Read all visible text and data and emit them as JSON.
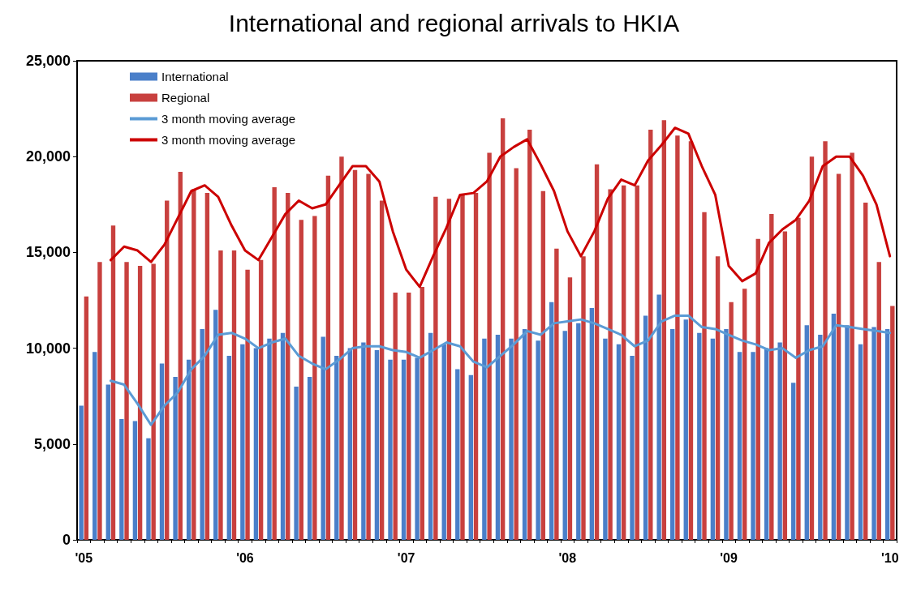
{
  "chart_data": {
    "type": "bar",
    "title": "International and regional arrivals to HKIA",
    "categories": [
      "'05",
      null,
      null,
      null,
      null,
      null,
      null,
      null,
      null,
      null,
      null,
      null,
      "'06",
      null,
      null,
      null,
      null,
      null,
      null,
      null,
      null,
      null,
      null,
      null,
      "'07",
      null,
      null,
      null,
      null,
      null,
      null,
      null,
      null,
      null,
      null,
      null,
      "'08",
      null,
      null,
      null,
      null,
      null,
      null,
      null,
      null,
      null,
      null,
      null,
      "'09",
      null,
      null,
      null,
      null,
      null,
      null,
      null,
      null,
      null,
      null,
      null,
      "'10"
    ],
    "series": [
      {
        "name": "International",
        "color": "#4a7fc9",
        "values": [
          7000,
          9800,
          8100,
          6300,
          6200,
          5300,
          9200,
          8500,
          9400,
          11000,
          12000,
          9600,
          10200,
          10000,
          10500,
          10800,
          8000,
          8500,
          10600,
          9600,
          10000,
          10300,
          9900,
          9400,
          9400,
          9500,
          10800,
          10200,
          8900,
          8600,
          10500,
          10700,
          10500,
          11000,
          10400,
          12400,
          10900,
          11300,
          12100,
          10500,
          10200,
          9600,
          11700,
          12800,
          11000,
          11500,
          10800,
          10500,
          11000,
          9800,
          9800,
          10000,
          10300,
          8200,
          11200,
          10700,
          11800,
          11200,
          10200,
          11100,
          11000
        ]
      },
      {
        "name": "Regional",
        "color": "#c8403e",
        "values": [
          12700,
          14500,
          16400,
          14500,
          14300,
          14400,
          17700,
          19200,
          18300,
          18100,
          15100,
          15100,
          14100,
          14600,
          18400,
          18100,
          16700,
          16900,
          19000,
          20000,
          19300,
          19100,
          17700,
          12900,
          12900,
          13200,
          17900,
          17800,
          18000,
          18100,
          20200,
          22000,
          19400,
          21400,
          18200,
          15200,
          13700,
          14800,
          19600,
          18300,
          18500,
          18500,
          21400,
          21900,
          21100,
          20800,
          17100,
          14800,
          12400,
          13100,
          15700,
          17000,
          16100,
          16800,
          20000,
          20800,
          19100,
          20200,
          17600,
          14500,
          12200
        ]
      },
      {
        "name": "3 month moving average",
        "type": "line",
        "color": "#5b9bd5",
        "values": [
          null,
          null,
          8300,
          8100,
          7100,
          6000,
          7000,
          7700,
          8900,
          9600,
          10700,
          10800,
          10500,
          10000,
          10300,
          10500,
          9600,
          9200,
          8900,
          9400,
          10000,
          10100,
          10100,
          9900,
          9800,
          9500,
          9900,
          10300,
          10100,
          9300,
          9000,
          9600,
          10200,
          10900,
          10700,
          11300,
          11400,
          11500,
          11300,
          11000,
          10700,
          10100,
          10400,
          11400,
          11700,
          11700,
          11100,
          11000,
          10700,
          10400,
          10200,
          9900,
          10000,
          9500,
          9900,
          10100,
          11200,
          11100,
          11000,
          10900,
          10800
        ]
      },
      {
        "name": "3 month moving average",
        "type": "line",
        "color": "#cc0000",
        "values": [
          null,
          null,
          14600,
          15300,
          15100,
          14500,
          15400,
          16800,
          18200,
          18500,
          17900,
          16400,
          15100,
          14600,
          15800,
          17000,
          17700,
          17300,
          17500,
          18500,
          19500,
          19500,
          18700,
          16100,
          14100,
          13200,
          14800,
          16300,
          18000,
          18100,
          18700,
          20000,
          20500,
          20900,
          19600,
          18200,
          16100,
          14800,
          16100,
          17800,
          18800,
          18500,
          19800,
          20600,
          21500,
          21200,
          19500,
          18000,
          14300,
          13500,
          13900,
          15500,
          16200,
          16700,
          17700,
          19500,
          20000,
          20000,
          19000,
          17500,
          14800
        ]
      }
    ],
    "ylim": [
      0,
      25000
    ],
    "yticks": [
      {
        "value": 0,
        "label": "0"
      },
      {
        "value": 5000,
        "label": "5,000"
      },
      {
        "value": 10000,
        "label": "10,000"
      },
      {
        "value": 15000,
        "label": "15,000"
      },
      {
        "value": 20000,
        "label": "20,000"
      },
      {
        "value": 25000,
        "label": "25,000"
      }
    ],
    "grid": false,
    "legend": "top left",
    "marker": "none",
    "line_style": "solid"
  }
}
